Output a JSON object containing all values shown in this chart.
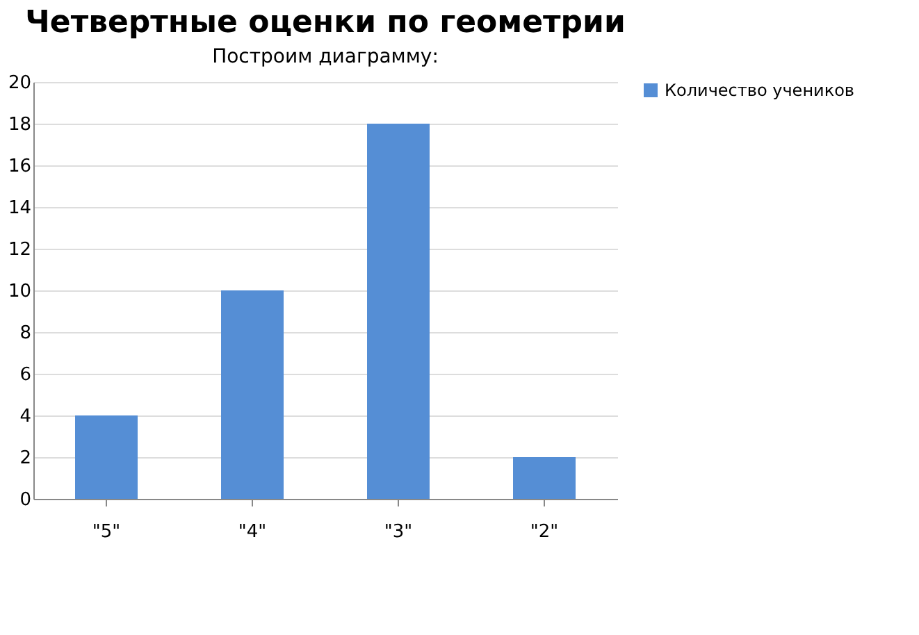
{
  "chart_data": {
    "type": "bar",
    "title": "Четвертные оценки по геометрии",
    "annotations": [
      "Построим диаграмму:"
    ],
    "categories": [
      "\"5\"",
      "\"4\"",
      "\"3\"",
      "\"2\""
    ],
    "series": [
      {
        "name": "Количество учеников",
        "color": "#558ed5",
        "values": [
          4,
          10,
          18,
          2
        ]
      }
    ],
    "ylim": [
      0,
      20
    ],
    "yticks": [
      0,
      2,
      4,
      6,
      8,
      10,
      12,
      14,
      16,
      18,
      20
    ],
    "grid": "y",
    "legend": "right"
  }
}
